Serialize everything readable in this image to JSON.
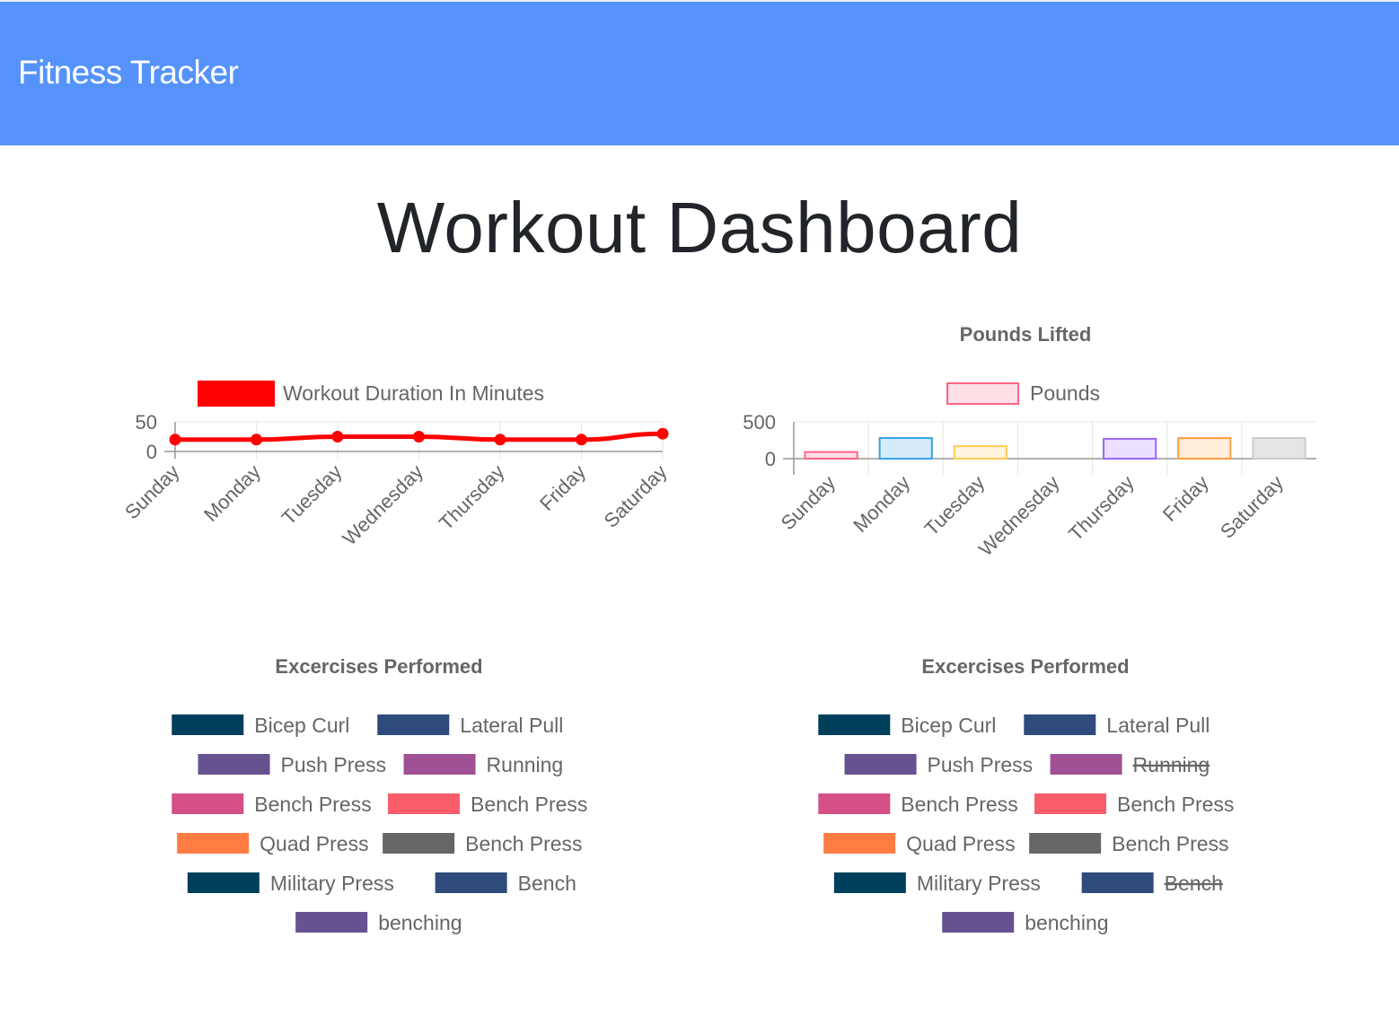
{
  "navbar": {
    "brand": "Fitness Tracker",
    "color": "#5593fb"
  },
  "page": {
    "title": "Workout Dashboard"
  },
  "charts": {
    "duration": {
      "legend": "Workout Duration In Minutes",
      "color": "#ff0000"
    },
    "pounds": {
      "title": "Pounds Lifted",
      "legend": "Pounds",
      "fill_colors": [
        "#ffe0e6",
        "#d7ecfb",
        "#fff5dd",
        "#dbf2f2",
        "#ebe0ff",
        "#ffecd9",
        "#e5e5e5"
      ],
      "border_colors": [
        "#ff6384",
        "#36a2eb",
        "#ffcd56",
        "#4bc0c0",
        "#9966ff",
        "#ff9f40",
        "#c9cbcf"
      ]
    },
    "exercises_left": {
      "title": "Excercises Performed",
      "items": [
        {
          "label": "Bicep Curl",
          "color": "#003f5c",
          "hidden": false
        },
        {
          "label": "Lateral Pull",
          "color": "#2f4b7c",
          "hidden": false
        },
        {
          "label": "Push Press",
          "color": "#665191",
          "hidden": false
        },
        {
          "label": "Running",
          "color": "#a05195",
          "hidden": false
        },
        {
          "label": "Bench Press",
          "color": "#d45087",
          "hidden": false
        },
        {
          "label": "Bench Press",
          "color": "#f95d6a",
          "hidden": false
        },
        {
          "label": "Quad Press",
          "color": "#ff7c43",
          "hidden": false
        },
        {
          "label": "Bench Press",
          "color": "#666666",
          "hidden": false
        },
        {
          "label": "Military Press",
          "color": "#003f5c",
          "hidden": false
        },
        {
          "label": "Bench",
          "color": "#2f4b7c",
          "hidden": false
        },
        {
          "label": "benching",
          "color": "#665191",
          "hidden": false
        }
      ]
    },
    "exercises_right": {
      "title": "Excercises Performed",
      "items": [
        {
          "label": "Bicep Curl",
          "color": "#003f5c",
          "hidden": false
        },
        {
          "label": "Lateral Pull",
          "color": "#2f4b7c",
          "hidden": false
        },
        {
          "label": "Push Press",
          "color": "#665191",
          "hidden": false
        },
        {
          "label": "Running",
          "color": "#a05195",
          "hidden": true
        },
        {
          "label": "Bench Press",
          "color": "#d45087",
          "hidden": false
        },
        {
          "label": "Bench Press",
          "color": "#f95d6a",
          "hidden": false
        },
        {
          "label": "Quad Press",
          "color": "#ff7c43",
          "hidden": false
        },
        {
          "label": "Bench Press",
          "color": "#666666",
          "hidden": false
        },
        {
          "label": "Military Press",
          "color": "#003f5c",
          "hidden": false
        },
        {
          "label": "Bench",
          "color": "#2f4b7c",
          "hidden": true
        },
        {
          "label": "benching",
          "color": "#665191",
          "hidden": false
        }
      ]
    }
  },
  "chart_data": [
    {
      "type": "line",
      "title": "",
      "categories": [
        "Sunday",
        "Monday",
        "Tuesday",
        "Wednesday",
        "Thursday",
        "Friday",
        "Saturday"
      ],
      "series": [
        {
          "name": "Workout Duration In Minutes",
          "values": [
            20,
            20,
            25,
            25,
            20,
            20,
            30
          ]
        }
      ],
      "yticks": [
        0,
        50
      ],
      "ylim": [
        0,
        50
      ],
      "legend": "top"
    },
    {
      "type": "bar",
      "title": "Pounds Lifted",
      "categories": [
        "Sunday",
        "Monday",
        "Tuesday",
        "Wednesday",
        "Thursday",
        "Friday",
        "Saturday"
      ],
      "series": [
        {
          "name": "Pounds",
          "values": [
            90,
            280,
            170,
            0,
            270,
            280,
            280
          ]
        }
      ],
      "yticks": [
        0,
        500
      ],
      "ylim": [
        0,
        500
      ],
      "legend": "top"
    }
  ]
}
